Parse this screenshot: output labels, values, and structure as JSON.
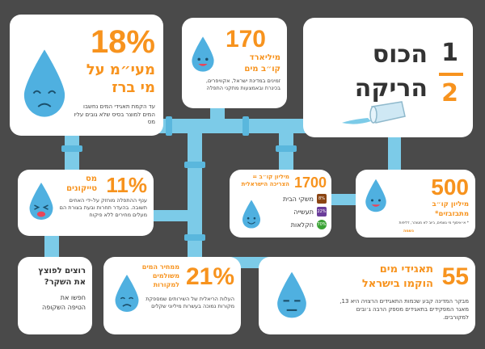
{
  "title_card": {
    "fraction_top": "1",
    "fraction_bottom": "2",
    "line1": "הכוס",
    "line2": "הריקה"
  },
  "c18": {
    "number": "18%",
    "headline1": "מעי״מ על",
    "headline2": "מי ברז",
    "text": "עד הקמת תאגידי המים נחשבו המים למוצר בסיס שלא גובים עליו מס"
  },
  "c170": {
    "number": "170",
    "unit1": "מיליארד",
    "unit2": "קו״ב מים",
    "text": "זמינים במדינת ישראל, אקוויפרים, בכינרת ובאמצעות מתקני התפלה"
  },
  "c11": {
    "number": "11%",
    "unit1": "מס",
    "unit2": "טייקונים",
    "text": "ענף ההתפלה מוחזק על-ידי האחים תשובה. בהעדר תחרות ובעת בצורת הם מעלים מחירים ללא פיקוח"
  },
  "c1700": {
    "number": "1700",
    "unit1": "מיליון קו״ב =",
    "unit2": "הצריכה הישראלית",
    "items": [
      {
        "label": "משקי הבית",
        "pct": "8%"
      },
      {
        "label": "תעשייה",
        "pct": "22%"
      },
      {
        "label": "חקלאות",
        "pct": "70%"
      }
    ]
  },
  "c500": {
    "number": "500",
    "unit1": "מיליון קו״ב",
    "unit2": "מתבזבזים*",
    "text": "* אי איסוף מי גשמים, ביוב לא מטוהר, דליפות",
    "footnote": "נשמה"
  },
  "cq": {
    "line1": "רוצים לפוצץ",
    "line2": "את השקר?",
    "line3": "חפשו את",
    "line4": "הטיפה השקופה"
  },
  "c21": {
    "number": "21%",
    "unit1": "ממחיר המים",
    "unit2": "משולמים",
    "unit3": "למקורות",
    "text": "העלות הריאלית של השירותים שמספקת מקורות נמוכה בעשרות מיליוני שקלים"
  },
  "c55": {
    "number": "55",
    "headline1": "תאגידי מים",
    "headline2": "הוקמו בישראל",
    "text": "מבקר המדינה קבע שכמות התאגידים הרצויה היא 13, מאגר המפקידים בתאגידים מספק הרבה ג׳ובים למקורבים."
  },
  "colors": {
    "accent": "#f7931e",
    "pipe": "#7ccbe8",
    "drop": "#4fb0e0",
    "background": "#4a4a4a"
  }
}
